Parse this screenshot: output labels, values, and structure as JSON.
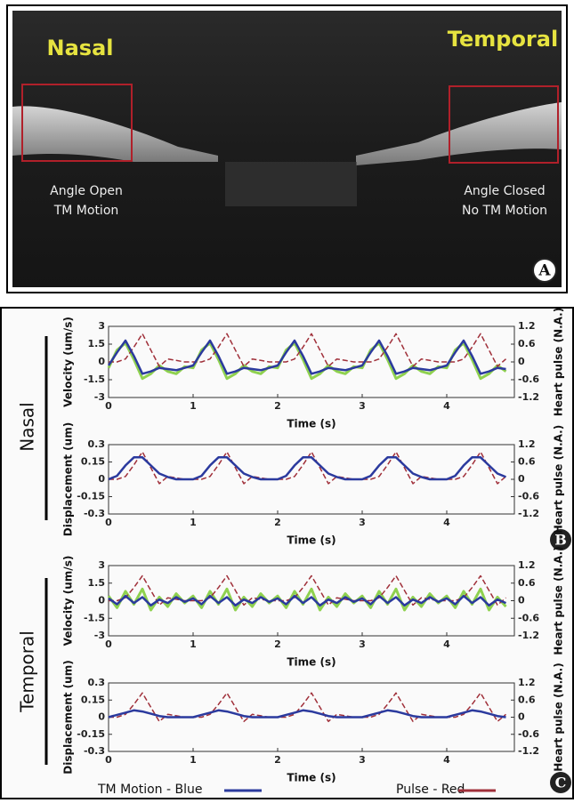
{
  "panel_a": {
    "left_title": "Nasal",
    "right_title": "Temporal",
    "left_notes": [
      "Angle Open",
      "TM Motion"
    ],
    "right_notes": [
      "Angle Closed",
      "No TM Motion"
    ],
    "letter": "A"
  },
  "group_labels": [
    "Nasal",
    "Temporal"
  ],
  "panel_letters": [
    "B",
    "C"
  ],
  "legend": [
    {
      "label": "TM Motion - Blue",
      "color": "#2b3a9e"
    },
    {
      "label": "Pulse - Red",
      "color": "#a0303a"
    }
  ],
  "chart_data": [
    {
      "type": "line",
      "ylabel": "Velocity (um/s)",
      "y2label": "Heart pulse (N.A.)",
      "xlabel": "Time (s)",
      "xlim": [
        0,
        4.8
      ],
      "xticks": [
        0,
        1,
        2,
        3,
        4
      ],
      "ylim": [
        -3,
        3
      ],
      "yticks": [
        -3,
        -1.5,
        0,
        1.5,
        3
      ],
      "y2lim": [
        -1.2,
        1.2
      ],
      "y2ticks": [
        -1.2,
        -0.6,
        0,
        0.6,
        1.2
      ],
      "x": [
        0,
        0.1,
        0.2,
        0.3,
        0.4,
        0.5,
        0.6,
        0.7,
        0.8,
        0.9,
        1,
        1.1,
        1.2,
        1.3,
        1.4,
        1.5,
        1.6,
        1.7,
        1.8,
        1.9,
        2,
        2.1,
        2.2,
        2.3,
        2.4,
        2.5,
        2.6,
        2.7,
        2.8,
        2.9,
        3,
        3.1,
        3.2,
        3.3,
        3.4,
        3.5,
        3.6,
        3.7,
        3.8,
        3.9,
        4,
        4.1,
        4.2,
        4.3,
        4.4,
        4.5,
        4.6,
        4.7
      ],
      "series": [
        {
          "color": "#8fd14f",
          "values": [
            -0.5,
            1,
            1.6,
            0.2,
            -1.4,
            -1,
            -0.3,
            -0.8,
            -1,
            -0.4,
            -0.5,
            1,
            1.6,
            0.2,
            -1.4,
            -1,
            -0.3,
            -0.8,
            -1,
            -0.4,
            -0.5,
            1,
            1.6,
            0.2,
            -1.4,
            -1,
            -0.3,
            -0.8,
            -1,
            -0.4,
            -0.5,
            1,
            1.6,
            0.2,
            -1.4,
            -1,
            -0.3,
            -0.8,
            -1,
            -0.4,
            -0.5,
            1,
            1.6,
            0.2,
            -1.4,
            -1,
            -0.3,
            -0.8
          ]
        },
        {
          "color": "#a0303a",
          "axis": "y2",
          "dashed": true,
          "values": [
            0,
            0,
            0.1,
            0.5,
            0.95,
            0.4,
            -0.15,
            0.1,
            0.05,
            0,
            0,
            0,
            0.1,
            0.5,
            0.95,
            0.4,
            -0.15,
            0.1,
            0.05,
            0,
            0,
            0,
            0.1,
            0.5,
            0.95,
            0.4,
            -0.15,
            0.1,
            0.05,
            0,
            0,
            0,
            0.1,
            0.5,
            0.95,
            0.4,
            -0.15,
            0.1,
            0.05,
            0,
            0,
            0,
            0.1,
            0.5,
            0.95,
            0.4,
            -0.15,
            0.1
          ]
        },
        {
          "color": "#2b3a9e",
          "values": [
            -0.3,
            0.8,
            1.8,
            0.5,
            -1,
            -0.8,
            -0.5,
            -0.6,
            -0.7,
            -0.5,
            -0.3,
            0.8,
            1.8,
            0.5,
            -1,
            -0.8,
            -0.5,
            -0.6,
            -0.7,
            -0.5,
            -0.3,
            0.8,
            1.8,
            0.5,
            -1,
            -0.8,
            -0.5,
            -0.6,
            -0.7,
            -0.5,
            -0.3,
            0.8,
            1.8,
            0.5,
            -1,
            -0.8,
            -0.5,
            -0.6,
            -0.7,
            -0.5,
            -0.3,
            0.8,
            1.8,
            0.5,
            -1,
            -0.8,
            -0.5,
            -0.6
          ]
        }
      ]
    },
    {
      "type": "line",
      "ylabel": "Displacement (um)",
      "y2label": "Heart pulse (N.A.)",
      "xlabel": "Time (s)",
      "xlim": [
        0,
        4.8
      ],
      "xticks": [
        0,
        1,
        2,
        3,
        4
      ],
      "ylim": [
        -0.3,
        0.3
      ],
      "yticks": [
        -0.3,
        -0.15,
        0,
        0.15,
        0.3
      ],
      "y2lim": [
        -1.2,
        1.2
      ],
      "y2ticks": [
        -1.2,
        -0.6,
        0,
        0.6,
        1.2
      ],
      "x": [
        0,
        0.1,
        0.2,
        0.3,
        0.4,
        0.5,
        0.6,
        0.7,
        0.8,
        0.9,
        1,
        1.1,
        1.2,
        1.3,
        1.4,
        1.5,
        1.6,
        1.7,
        1.8,
        1.9,
        2,
        2.1,
        2.2,
        2.3,
        2.4,
        2.5,
        2.6,
        2.7,
        2.8,
        2.9,
        3,
        3.1,
        3.2,
        3.3,
        3.4,
        3.5,
        3.6,
        3.7,
        3.8,
        3.9,
        4,
        4.1,
        4.2,
        4.3,
        4.4,
        4.5,
        4.6,
        4.7
      ],
      "series": [
        {
          "color": "#a0303a",
          "axis": "y2",
          "dashed": true,
          "values": [
            0,
            0,
            0.1,
            0.5,
            0.95,
            0.4,
            -0.15,
            0.1,
            0.05,
            0,
            0,
            0,
            0.1,
            0.5,
            0.95,
            0.4,
            -0.15,
            0.1,
            0.05,
            0,
            0,
            0,
            0.1,
            0.5,
            0.95,
            0.4,
            -0.15,
            0.1,
            0.05,
            0,
            0,
            0,
            0.1,
            0.5,
            0.95,
            0.4,
            -0.15,
            0.1,
            0.05,
            0,
            0,
            0,
            0.1,
            0.5,
            0.95,
            0.4,
            -0.15,
            0.1
          ]
        },
        {
          "color": "#2b3a9e",
          "values": [
            0,
            0.03,
            0.12,
            0.19,
            0.19,
            0.12,
            0.05,
            0.02,
            0,
            0,
            0,
            0.03,
            0.12,
            0.19,
            0.19,
            0.12,
            0.05,
            0.02,
            0,
            0,
            0,
            0.03,
            0.12,
            0.19,
            0.19,
            0.12,
            0.05,
            0.02,
            0,
            0,
            0,
            0.03,
            0.12,
            0.19,
            0.19,
            0.12,
            0.05,
            0.02,
            0,
            0,
            0,
            0.03,
            0.12,
            0.19,
            0.19,
            0.12,
            0.05,
            0.02
          ]
        }
      ]
    },
    {
      "type": "line",
      "ylabel": "Velocity (um/s)",
      "y2label": "Heart pulse (N.A.)",
      "xlabel": "Time (s)",
      "xlim": [
        0,
        4.8
      ],
      "xticks": [
        0,
        1,
        2,
        3,
        4
      ],
      "ylim": [
        -3,
        3
      ],
      "yticks": [
        -3,
        -1.5,
        0,
        1.5,
        3
      ],
      "y2lim": [
        -1.2,
        1.2
      ],
      "y2ticks": [
        -1.2,
        -0.6,
        0,
        0.6,
        1.2
      ],
      "x": [
        0,
        0.1,
        0.2,
        0.3,
        0.4,
        0.5,
        0.6,
        0.7,
        0.8,
        0.9,
        1,
        1.1,
        1.2,
        1.3,
        1.4,
        1.5,
        1.6,
        1.7,
        1.8,
        1.9,
        2,
        2.1,
        2.2,
        2.3,
        2.4,
        2.5,
        2.6,
        2.7,
        2.8,
        2.9,
        3,
        3.1,
        3.2,
        3.3,
        3.4,
        3.5,
        3.6,
        3.7,
        3.8,
        3.9,
        4,
        4.1,
        4.2,
        4.3,
        4.4,
        4.5,
        4.6,
        4.7
      ],
      "series": [
        {
          "color": "#8fd14f",
          "values": [
            0.4,
            -0.6,
            0.8,
            -0.3,
            1,
            -0.8,
            0.3,
            -0.5,
            0.6,
            -0.2,
            0.4,
            -0.6,
            0.8,
            -0.3,
            1,
            -0.8,
            0.3,
            -0.5,
            0.6,
            -0.2,
            0.4,
            -0.6,
            0.8,
            -0.3,
            1,
            -0.8,
            0.3,
            -0.5,
            0.6,
            -0.2,
            0.4,
            -0.6,
            0.8,
            -0.3,
            1,
            -0.8,
            0.3,
            -0.5,
            0.6,
            -0.2,
            0.4,
            -0.6,
            0.8,
            -0.3,
            1,
            -0.8,
            0.3,
            -0.5
          ]
        },
        {
          "color": "#a0303a",
          "axis": "y2",
          "dashed": true,
          "values": [
            0,
            0,
            0.1,
            0.45,
            0.85,
            0.35,
            -0.15,
            0.1,
            0.05,
            0,
            0,
            0,
            0.1,
            0.45,
            0.85,
            0.35,
            -0.15,
            0.1,
            0.05,
            0,
            0,
            0,
            0.1,
            0.45,
            0.85,
            0.35,
            -0.15,
            0.1,
            0.05,
            0,
            0,
            0,
            0.1,
            0.45,
            0.85,
            0.35,
            -0.15,
            0.1,
            0.05,
            0,
            0,
            0,
            0.1,
            0.45,
            0.85,
            0.35,
            -0.15,
            0.1
          ]
        },
        {
          "color": "#2b3a9e",
          "values": [
            0.2,
            -0.3,
            0.4,
            -0.2,
            0.3,
            -0.4,
            0.1,
            -0.2,
            0.3,
            -0.1,
            0.2,
            -0.3,
            0.4,
            -0.2,
            0.3,
            -0.4,
            0.1,
            -0.2,
            0.3,
            -0.1,
            0.2,
            -0.3,
            0.4,
            -0.2,
            0.3,
            -0.4,
            0.1,
            -0.2,
            0.3,
            -0.1,
            0.2,
            -0.3,
            0.4,
            -0.2,
            0.3,
            -0.4,
            0.1,
            -0.2,
            0.3,
            -0.1,
            0.2,
            -0.3,
            0.4,
            -0.2,
            0.3,
            -0.4,
            0.1,
            -0.2
          ]
        }
      ]
    },
    {
      "type": "line",
      "ylabel": "Displacement (um)",
      "y2label": "Heart pulse (N.A.)",
      "xlabel": "Time (s)",
      "xlim": [
        0,
        4.8
      ],
      "xticks": [
        0,
        1,
        2,
        3,
        4
      ],
      "ylim": [
        -0.3,
        0.3
      ],
      "yticks": [
        -0.3,
        -0.15,
        0,
        0.15,
        0.3
      ],
      "y2lim": [
        -1.2,
        1.2
      ],
      "y2ticks": [
        -1.2,
        -0.6,
        0,
        0.6,
        1.2
      ],
      "x": [
        0,
        0.1,
        0.2,
        0.3,
        0.4,
        0.5,
        0.6,
        0.7,
        0.8,
        0.9,
        1,
        1.1,
        1.2,
        1.3,
        1.4,
        1.5,
        1.6,
        1.7,
        1.8,
        1.9,
        2,
        2.1,
        2.2,
        2.3,
        2.4,
        2.5,
        2.6,
        2.7,
        2.8,
        2.9,
        3,
        3.1,
        3.2,
        3.3,
        3.4,
        3.5,
        3.6,
        3.7,
        3.8,
        3.9,
        4,
        4.1,
        4.2,
        4.3,
        4.4,
        4.5,
        4.6,
        4.7
      ],
      "series": [
        {
          "color": "#a0303a",
          "axis": "y2",
          "dashed": true,
          "values": [
            0,
            0,
            0.1,
            0.45,
            0.85,
            0.35,
            -0.15,
            0.1,
            0.05,
            0,
            0,
            0,
            0.1,
            0.45,
            0.85,
            0.35,
            -0.15,
            0.1,
            0.05,
            0,
            0,
            0,
            0.1,
            0.45,
            0.85,
            0.35,
            -0.15,
            0.1,
            0.05,
            0,
            0,
            0,
            0.1,
            0.45,
            0.85,
            0.35,
            -0.15,
            0.1,
            0.05,
            0,
            0,
            0,
            0.1,
            0.45,
            0.85,
            0.35,
            -0.15,
            0.1
          ]
        },
        {
          "color": "#2b3a9e",
          "values": [
            0,
            0.02,
            0.04,
            0.06,
            0.05,
            0.03,
            0.01,
            0,
            0,
            0,
            0,
            0.02,
            0.04,
            0.06,
            0.05,
            0.03,
            0.01,
            0,
            0,
            0,
            0,
            0.02,
            0.04,
            0.06,
            0.05,
            0.03,
            0.01,
            0,
            0,
            0,
            0,
            0.02,
            0.04,
            0.06,
            0.05,
            0.03,
            0.01,
            0,
            0,
            0,
            0,
            0.02,
            0.04,
            0.06,
            0.05,
            0.03,
            0.01,
            0
          ]
        }
      ]
    }
  ]
}
